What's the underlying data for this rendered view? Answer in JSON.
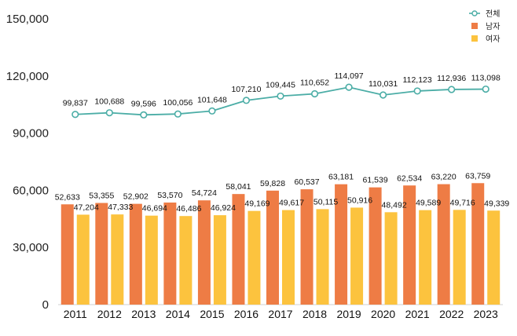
{
  "chart_data": {
    "type": "bar",
    "categories": [
      "2011",
      "2012",
      "2013",
      "2014",
      "2015",
      "2016",
      "2017",
      "2018",
      "2019",
      "2020",
      "2021",
      "2022",
      "2023"
    ],
    "series": [
      {
        "name": "전체",
        "kind": "line",
        "color": "#4bada6",
        "values": [
          99837,
          100688,
          99596,
          100056,
          101648,
          107210,
          109445,
          110652,
          114097,
          110031,
          112123,
          112936,
          113098
        ],
        "labels": [
          "99,837",
          "100,688",
          "99,596",
          "100,056",
          "101,648",
          "107,210",
          "109,445",
          "110,652",
          "114,097",
          "110,031",
          "112,123",
          "112,936",
          "113,098"
        ]
      },
      {
        "name": "남자",
        "kind": "bar",
        "color": "#ee7c45",
        "values": [
          52633,
          53355,
          52902,
          53570,
          54724,
          58041,
          59828,
          60537,
          63181,
          61539,
          62534,
          63220,
          63759
        ],
        "labels": [
          "52,633",
          "53,355",
          "52,902",
          "53,570",
          "54,724",
          "58,041",
          "59,828",
          "60,537",
          "63,181",
          "61,539",
          "62,534",
          "63,220",
          "63,759"
        ]
      },
      {
        "name": "여자",
        "kind": "bar",
        "color": "#fcc33e",
        "values": [
          47204,
          47333,
          46694,
          46486,
          46924,
          49169,
          49617,
          50115,
          50916,
          48492,
          49589,
          49716,
          49339
        ],
        "labels": [
          "47,204",
          "47,333",
          "46,694",
          "46,486",
          "46,924",
          "49,169",
          "49,617",
          "50,115",
          "50,916",
          "48,492",
          "49,589",
          "49,716",
          "49,339"
        ]
      }
    ],
    "y_ticks": [
      0,
      30000,
      60000,
      90000,
      120000,
      150000
    ],
    "y_tick_labels": [
      "0",
      "30,000",
      "60,000",
      "90,000",
      "120,000",
      "150,000"
    ],
    "ylim": [
      0,
      150000
    ],
    "grid": false,
    "legend_position": "top-right",
    "title": "",
    "xlabel": "",
    "ylabel": ""
  }
}
